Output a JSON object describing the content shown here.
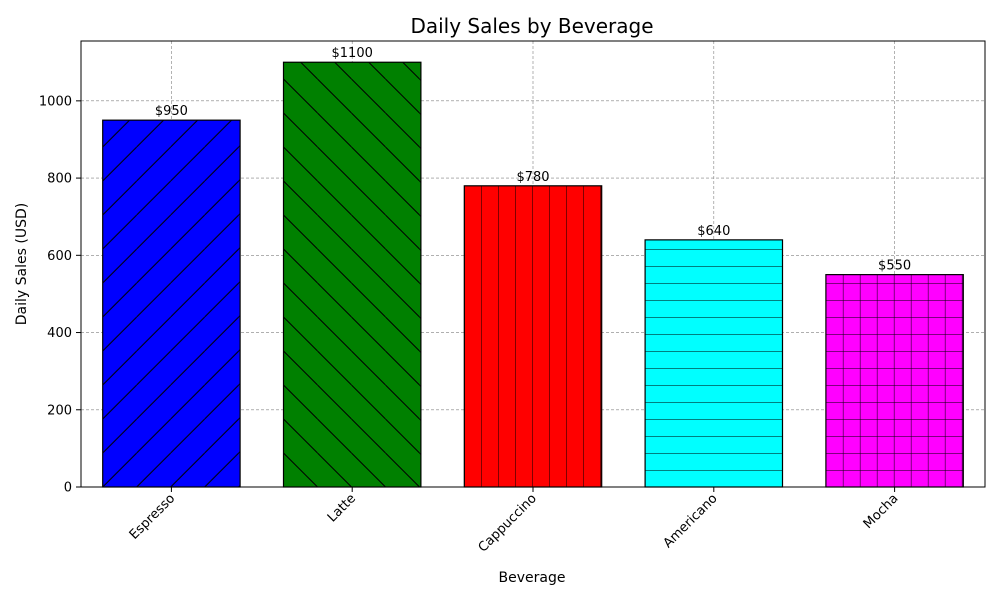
{
  "chart_data": {
    "type": "bar",
    "title": "Daily Sales by Beverage",
    "xlabel": "Beverage",
    "ylabel": "Daily Sales (USD)",
    "categories": [
      "Espresso",
      "Latte",
      "Cappuccino",
      "Americano",
      "Mocha"
    ],
    "values": [
      950,
      1100,
      780,
      640,
      550
    ],
    "data_labels": [
      "$950",
      "$1100",
      "$780",
      "$640",
      "$550"
    ],
    "colors": [
      "#0000ff",
      "#008000",
      "#ff0000",
      "#00ffff",
      "#ff00ff"
    ],
    "hatches": [
      "forward-diagonal",
      "back-diagonal",
      "vertical",
      "horizontal",
      "grid"
    ],
    "ylim": [
      0,
      1155
    ],
    "yticks": [
      0,
      200,
      400,
      600,
      800,
      1000
    ],
    "grid": true
  }
}
